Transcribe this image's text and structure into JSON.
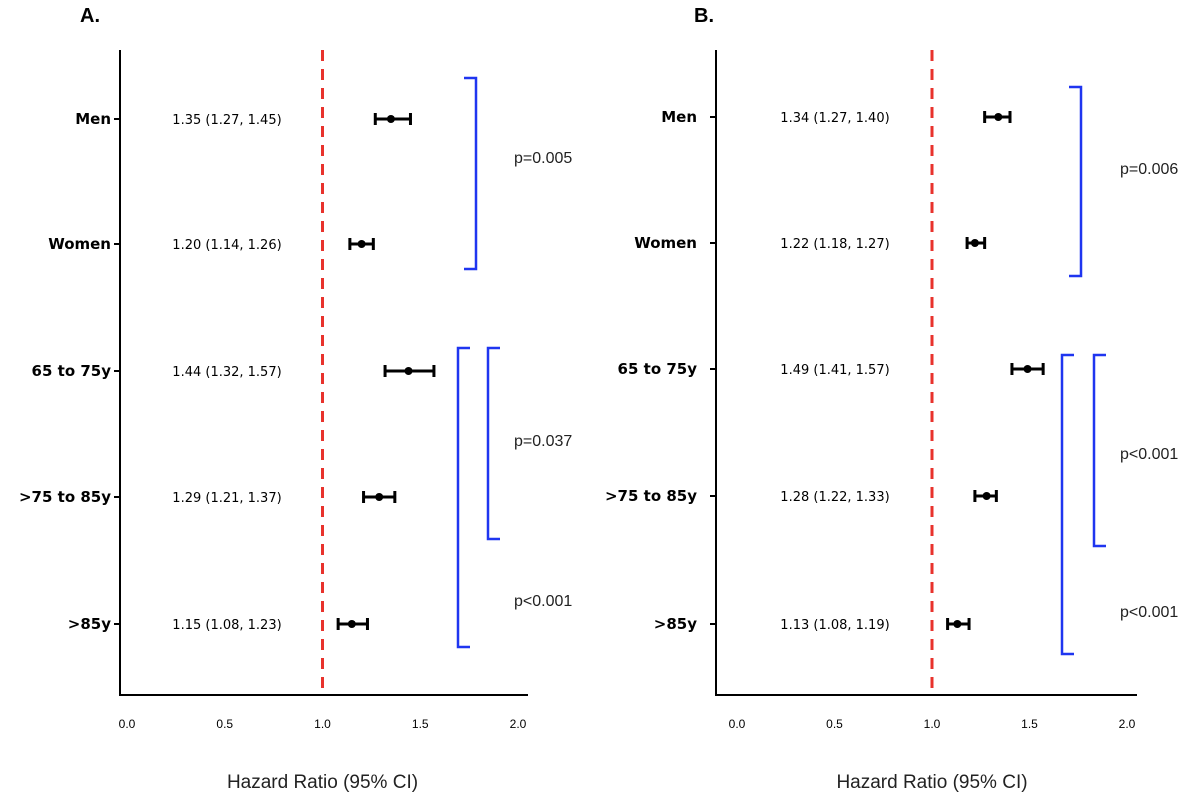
{
  "chart_data": [
    {
      "type": "forest",
      "panel": "A.",
      "xlabel": "Hazard Ratio (95% CI)",
      "xlim": [
        0.0,
        2.0
      ],
      "xticks": [
        "0.0",
        "0.5",
        "1.0",
        "1.5",
        "2.0"
      ],
      "reference_line": 1.0,
      "rows": [
        {
          "label": "Men",
          "hr": 1.35,
          "lo": 1.27,
          "hi": 1.45,
          "text": "1.35 (1.27, 1.45)"
        },
        {
          "label": "Women",
          "hr": 1.2,
          "lo": 1.14,
          "hi": 1.26,
          "text": "1.20 (1.14, 1.26)"
        },
        {
          "label": "65 to 75y",
          "hr": 1.44,
          "lo": 1.32,
          "hi": 1.57,
          "text": "1.44 (1.32, 1.57)"
        },
        {
          "label": ">75 to 85y",
          "hr": 1.29,
          "lo": 1.21,
          "hi": 1.37,
          "text": "1.29 (1.21, 1.37)"
        },
        {
          "label": ">85y",
          "hr": 1.15,
          "lo": 1.08,
          "hi": 1.23,
          "text": "1.15 (1.08, 1.23)"
        }
      ],
      "comparisons": [
        {
          "rows": [
            0,
            1
          ],
          "text": "p=0.005"
        },
        {
          "rows": [
            2,
            3
          ],
          "text": "p=0.037"
        },
        {
          "rows": [
            2,
            4
          ],
          "text": "p<0.001"
        }
      ]
    },
    {
      "type": "forest",
      "panel": "B.",
      "xlabel": "Hazard Ratio (95% CI)",
      "xlim": [
        0.0,
        2.0
      ],
      "xticks": [
        "0.0",
        "0.5",
        "1.0",
        "1.5",
        "2.0"
      ],
      "reference_line": 1.0,
      "rows": [
        {
          "label": "Men",
          "hr": 1.34,
          "lo": 1.27,
          "hi": 1.4,
          "text": "1.34 (1.27, 1.40)"
        },
        {
          "label": "Women",
          "hr": 1.22,
          "lo": 1.18,
          "hi": 1.27,
          "text": "1.22 (1.18, 1.27)"
        },
        {
          "label": "65 to 75y",
          "hr": 1.49,
          "lo": 1.41,
          "hi": 1.57,
          "text": "1.49 (1.41, 1.57)"
        },
        {
          "label": ">75 to 85y",
          "hr": 1.28,
          "lo": 1.22,
          "hi": 1.33,
          "text": "1.28 (1.22, 1.33)"
        },
        {
          "label": ">85y",
          "hr": 1.13,
          "lo": 1.08,
          "hi": 1.19,
          "text": "1.13 (1.08, 1.19)"
        }
      ],
      "comparisons": [
        {
          "rows": [
            0,
            1
          ],
          "text": "p=0.006"
        },
        {
          "rows": [
            2,
            3
          ],
          "text": "p<0.001"
        },
        {
          "rows": [
            2,
            4
          ],
          "text": "p<0.001"
        }
      ]
    }
  ],
  "colors": {
    "reference_line": "#e8322c",
    "brackets": "#1f35f0",
    "markers": "#000000"
  }
}
